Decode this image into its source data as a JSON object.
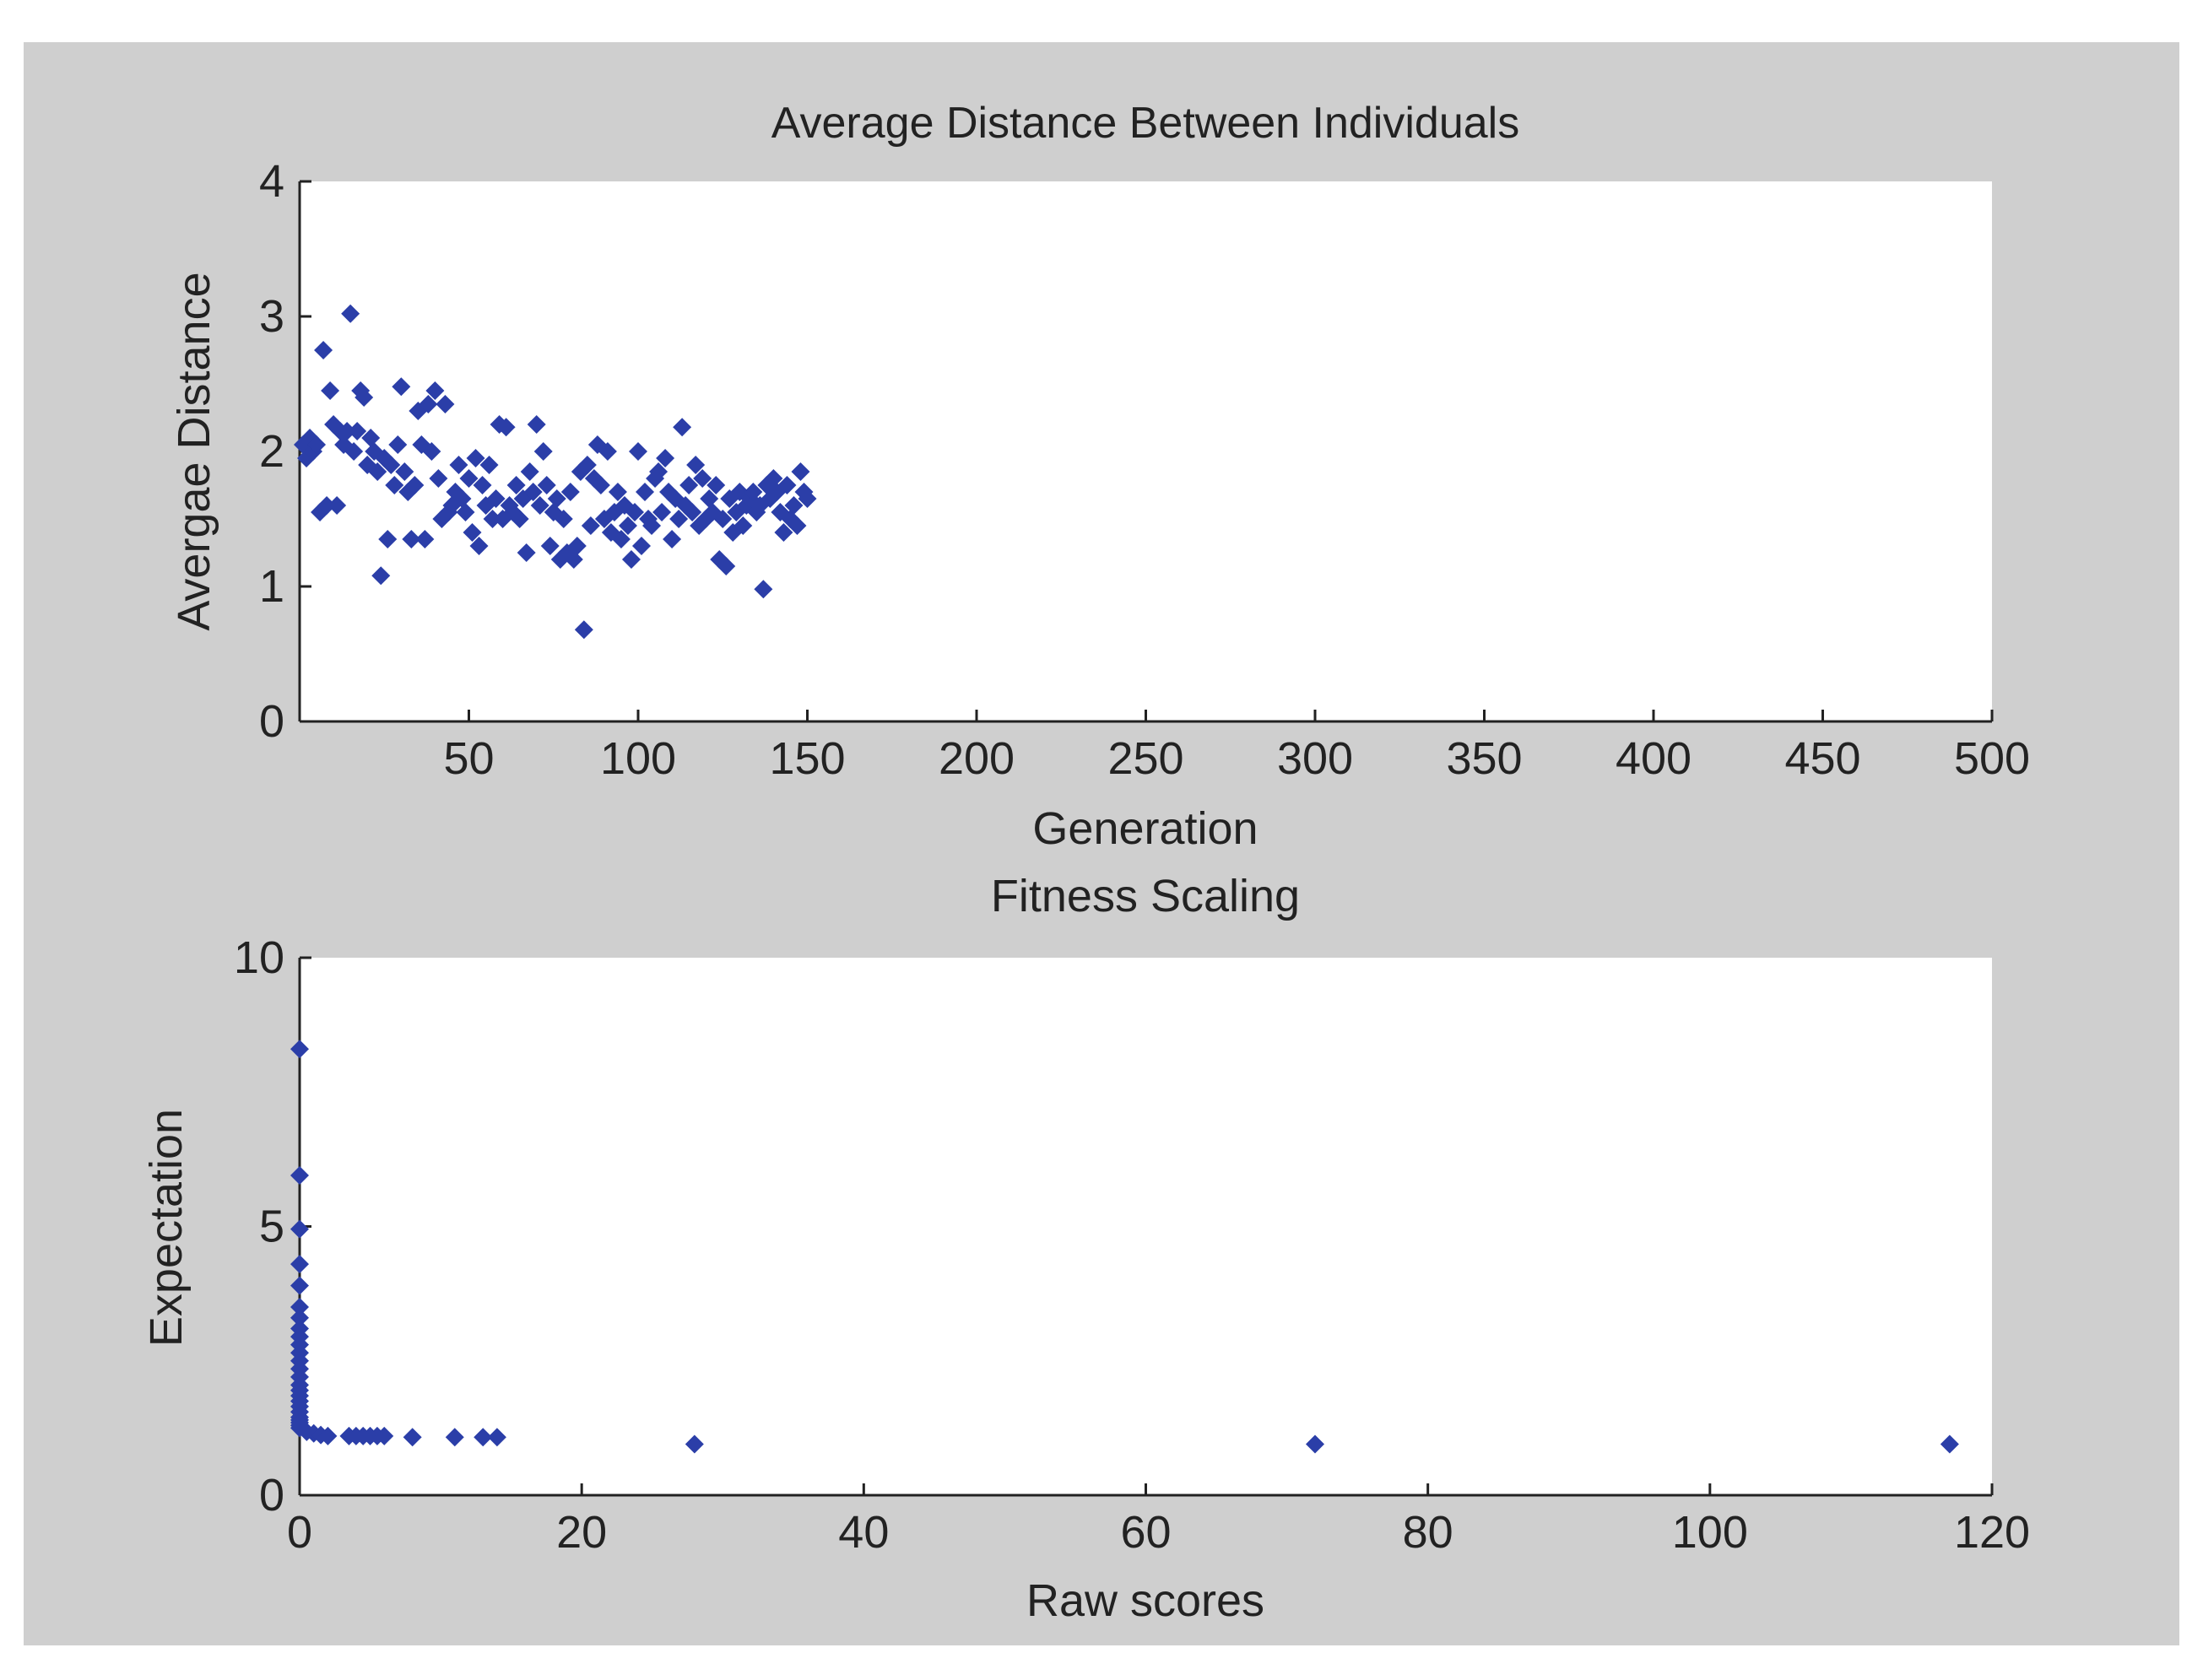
{
  "colors": {
    "figure_bg": "#cfcfcf",
    "axes_bg": "#ffffff",
    "marker": "#2b3ea8",
    "axis": "#222222"
  },
  "chart_data": [
    {
      "type": "scatter",
      "title": "Average Distance Between Individuals",
      "xlabel": "Generation",
      "ylabel": "Avergae Distance",
      "xlim": [
        0,
        500
      ],
      "ylim": [
        0,
        4
      ],
      "xticks": [
        50,
        100,
        150,
        200,
        250,
        300,
        350,
        400,
        450,
        500
      ],
      "yticks": [
        0,
        1,
        2,
        3,
        4
      ],
      "x": [
        1,
        2,
        3,
        4,
        5,
        6,
        7,
        8,
        9,
        10,
        11,
        12,
        13,
        14,
        15,
        16,
        17,
        18,
        19,
        20,
        21,
        22,
        23,
        24,
        25,
        26,
        27,
        28,
        29,
        30,
        31,
        32,
        33,
        34,
        35,
        36,
        37,
        38,
        39,
        40,
        41,
        42,
        43,
        44,
        45,
        46,
        47,
        48,
        49,
        50,
        51,
        52,
        53,
        54,
        55,
        56,
        57,
        58,
        59,
        60,
        61,
        62,
        63,
        64,
        65,
        66,
        67,
        68,
        69,
        70,
        71,
        72,
        73,
        74,
        75,
        76,
        77,
        78,
        79,
        80,
        81,
        82,
        83,
        84,
        85,
        86,
        87,
        88,
        89,
        90,
        91,
        92,
        93,
        94,
        95,
        96,
        97,
        98,
        99,
        100,
        101,
        102,
        103,
        104,
        105,
        106,
        107,
        108,
        109,
        110,
        111,
        112,
        113,
        114,
        115,
        116,
        117,
        118,
        119,
        120,
        121,
        122,
        123,
        124,
        125,
        126,
        127,
        128,
        129,
        130,
        131,
        132,
        133,
        134,
        135,
        136,
        137,
        138,
        139,
        140,
        141,
        142,
        143,
        144,
        145,
        146,
        147,
        148,
        149,
        150
      ],
      "y": [
        2.05,
        1.95,
        2.1,
        2.0,
        2.05,
        1.55,
        2.75,
        1.6,
        2.45,
        2.2,
        1.6,
        2.15,
        2.05,
        2.15,
        3.02,
        2.0,
        2.15,
        2.45,
        2.4,
        1.9,
        2.1,
        2.0,
        1.85,
        1.08,
        1.95,
        1.35,
        1.9,
        1.75,
        2.05,
        2.48,
        1.85,
        1.7,
        1.35,
        1.75,
        2.3,
        2.05,
        1.35,
        2.35,
        2.0,
        2.45,
        1.8,
        1.5,
        2.35,
        1.55,
        1.6,
        1.7,
        1.9,
        1.65,
        1.55,
        1.8,
        1.4,
        1.95,
        1.3,
        1.75,
        1.6,
        1.9,
        1.5,
        1.65,
        2.2,
        1.5,
        2.18,
        1.6,
        1.55,
        1.75,
        1.5,
        1.65,
        1.25,
        1.85,
        1.7,
        2.2,
        1.6,
        2.0,
        1.75,
        1.3,
        1.55,
        1.65,
        1.2,
        1.5,
        1.25,
        1.7,
        1.2,
        1.3,
        1.85,
        0.68,
        1.9,
        1.45,
        1.8,
        2.05,
        1.75,
        1.5,
        2.0,
        1.4,
        1.55,
        1.7,
        1.35,
        1.6,
        1.45,
        1.2,
        1.55,
        2.0,
        1.3,
        1.7,
        1.5,
        1.45,
        1.8,
        1.85,
        1.55,
        1.95,
        1.7,
        1.35,
        1.65,
        1.5,
        2.18,
        1.6,
        1.75,
        1.55,
        1.9,
        1.45,
        1.8,
        1.5,
        1.65,
        1.55,
        1.75,
        1.2,
        1.5,
        1.15,
        1.65,
        1.4,
        1.55,
        1.7,
        1.45,
        1.6,
        1.65,
        1.7,
        1.55,
        1.6,
        0.98,
        1.75,
        1.65,
        1.8,
        1.7,
        1.55,
        1.4,
        1.75,
        1.5,
        1.6,
        1.45,
        1.85,
        1.7,
        1.65
      ]
    },
    {
      "type": "scatter",
      "title": "Fitness Scaling",
      "xlabel": "Raw scores",
      "ylabel": "Expectation",
      "xlim": [
        0,
        120
      ],
      "ylim": [
        0,
        10
      ],
      "xticks": [
        0,
        20,
        40,
        60,
        80,
        100,
        120
      ],
      "yticks": [
        0,
        5,
        10
      ],
      "x": [
        0,
        0,
        0,
        0,
        0,
        0,
        0,
        0,
        0,
        0,
        0,
        0,
        0,
        0,
        0,
        0,
        0,
        0,
        0,
        0,
        0,
        0,
        0,
        0,
        0,
        0.5,
        1,
        1.5,
        2,
        3.5,
        4,
        4.5,
        5,
        5.5,
        6,
        8,
        11,
        13,
        14,
        28,
        72,
        117
      ],
      "y": [
        8.3,
        5.95,
        4.95,
        4.3,
        3.9,
        3.5,
        3.3,
        3.1,
        2.95,
        2.8,
        2.65,
        2.5,
        2.35,
        2.2,
        2.05,
        1.95,
        1.85,
        1.75,
        1.65,
        1.55,
        1.45,
        1.4,
        1.35,
        1.3,
        1.25,
        1.18,
        1.15,
        1.12,
        1.1,
        1.1,
        1.1,
        1.1,
        1.1,
        1.1,
        1.1,
        1.08,
        1.08,
        1.08,
        1.08,
        0.95,
        0.95,
        0.95
      ]
    }
  ]
}
